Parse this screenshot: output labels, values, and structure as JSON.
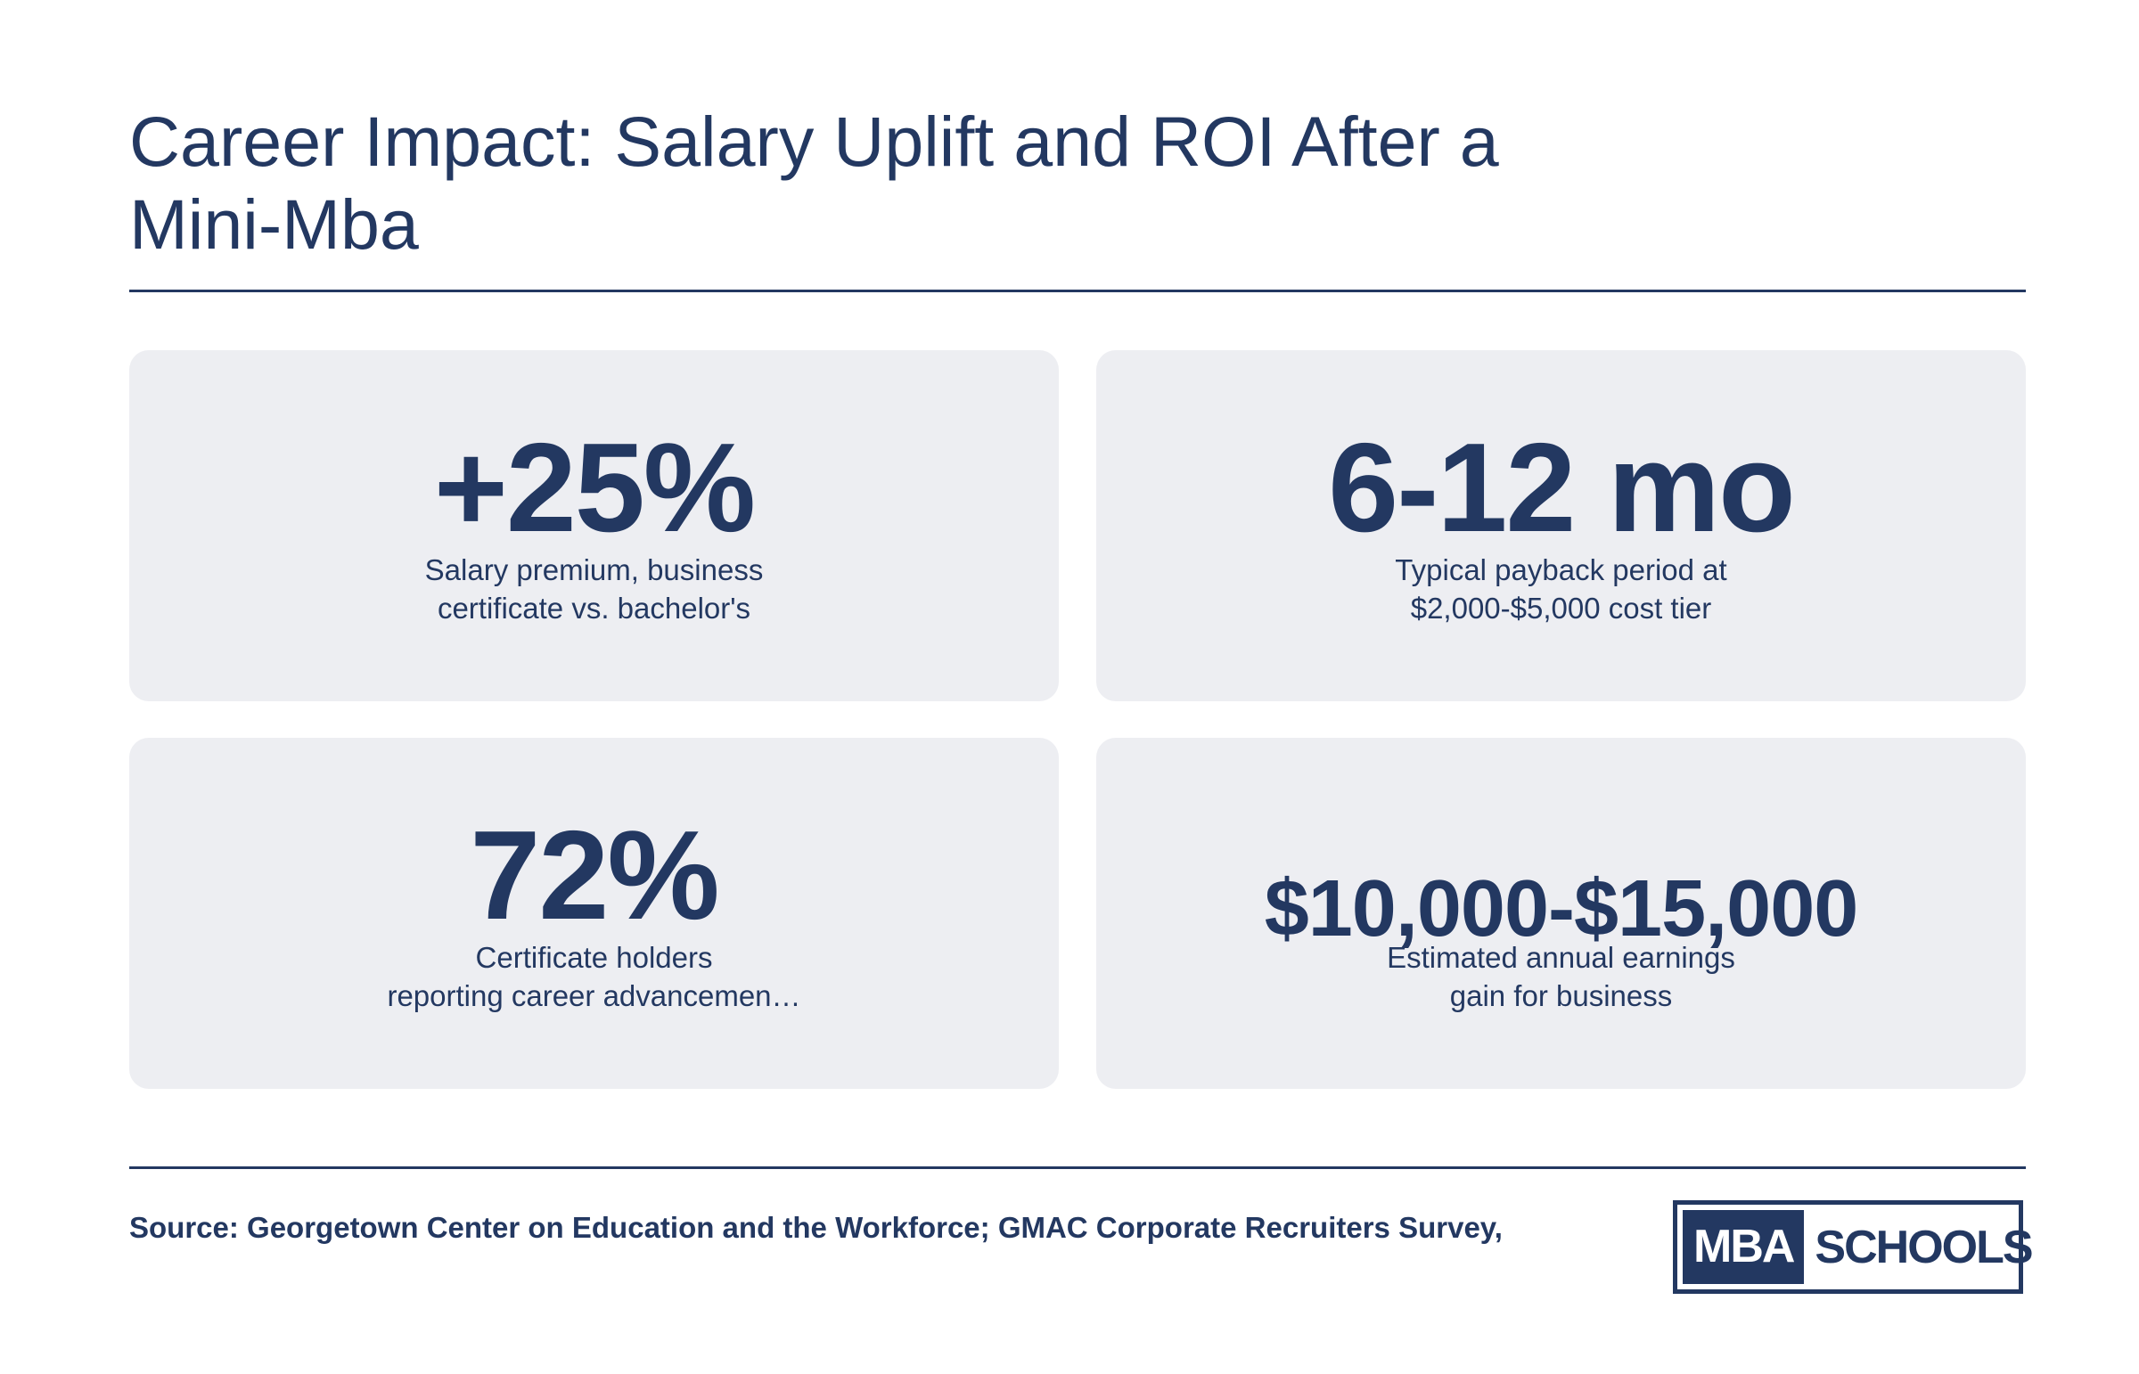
{
  "title": "Career Impact: Salary Uplift and ROI After a Mini-Mba",
  "stats": [
    {
      "value": "+25%",
      "label_lines": [
        "Salary premium, business",
        "certificate vs. bachelor's"
      ]
    },
    {
      "value": "6-12 mo",
      "label_lines": [
        "Typical payback period at",
        "$2,000-$5,000 cost tier"
      ]
    },
    {
      "value": "72%",
      "label_lines": [
        "Certificate holders",
        "reporting career advancemen…"
      ]
    },
    {
      "value": "$10,000-$15,000",
      "label_lines": [
        "Estimated annual earnings",
        "gain for business"
      ]
    }
  ],
  "source": "Source: Georgetown Center on Education and the Workforce; GMAC Corporate Recruiters Survey,",
  "logo": {
    "left_text": "MBA",
    "right_text": "SCHOOLS"
  },
  "colors": {
    "primary": "#233861",
    "card_bg": "#edeef2",
    "background": "#ffffff"
  }
}
